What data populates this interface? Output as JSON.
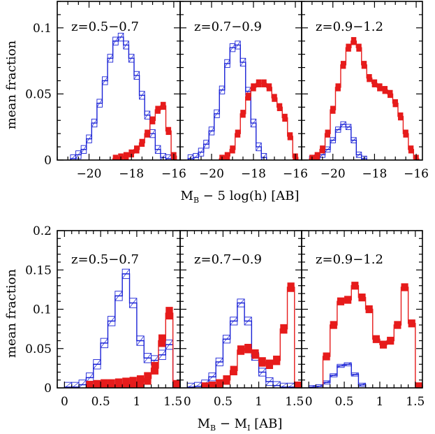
{
  "colors": {
    "blue": "#1a22d6",
    "red": "#e61b1b",
    "axis": "#000000"
  },
  "chart_data": [
    {
      "type": "histogram",
      "row": "top",
      "ylabel": "mean fraction",
      "xlabel_main": "M",
      "xlabel_sub": "B",
      "xlabel_rest": " − 5 log(h) [AB]",
      "xlim": [
        -21.5,
        -15.7
      ],
      "ylim": [
        0,
        0.12
      ],
      "yticks": [
        0,
        0.05,
        0.1
      ],
      "ytick_labels": [
        "0",
        "0.05",
        "0.1"
      ],
      "xticks": [
        -20,
        -18,
        -16
      ],
      "xtick_labels": [
        "−20",
        "−18",
        "−16"
      ],
      "bin_width": 0.25,
      "panels": [
        {
          "label": "z=0.5−0.7",
          "series": [
            {
              "name": "blue",
              "x": [
                -20.75,
                -20.5,
                -20.25,
                -20,
                -19.75,
                -19.5,
                -19.25,
                -19,
                -18.75,
                -18.5,
                -18.25,
                -18,
                -17.75,
                -17.5,
                -17.25,
                -17,
                -16.75,
                -16.5,
                -16.25
              ],
              "y": [
                0.001,
                0.004,
                0.008,
                0.016,
                0.028,
                0.043,
                0.06,
                0.077,
                0.09,
                0.093,
                0.087,
                0.077,
                0.064,
                0.049,
                0.034,
                0.02,
                0.008,
                0.002,
                0.001
              ],
              "err": 0.003
            },
            {
              "name": "red",
              "x": [
                -18.75,
                -18.5,
                -18.25,
                -18,
                -17.75,
                -17.5,
                -17.25,
                -17,
                -16.75,
                -16.5,
                -16.25,
                -16
              ],
              "y": [
                0.001,
                0.002,
                0.003,
                0.005,
                0.008,
                0.013,
                0.02,
                0.03,
                0.038,
                0.041,
                0.022,
                0.003
              ],
              "err": 0.003
            }
          ]
        },
        {
          "label": "z=0.7−0.9",
          "series": [
            {
              "name": "blue",
              "x": [
                -21,
                -20.75,
                -20.5,
                -20.25,
                -20,
                -19.75,
                -19.5,
                -19.25,
                -19,
                -18.75,
                -18.5,
                -18.25,
                -18,
                -17.75,
                -17.5
              ],
              "y": [
                0.001,
                0.002,
                0.006,
                0.012,
                0.022,
                0.035,
                0.053,
                0.073,
                0.085,
                0.087,
                0.074,
                0.052,
                0.028,
                0.01,
                0.002
              ],
              "err": 0.003
            },
            {
              "name": "red",
              "x": [
                -19.5,
                -19.25,
                -19,
                -18.75,
                -18.5,
                -18.25,
                -18,
                -17.75,
                -17.5,
                -17.25,
                -17,
                -16.75,
                -16.5,
                -16.25,
                -16
              ],
              "y": [
                0.001,
                0.003,
                0.008,
                0.02,
                0.035,
                0.048,
                0.055,
                0.058,
                0.058,
                0.055,
                0.047,
                0.04,
                0.032,
                0.018,
                0.002
              ],
              "err": 0.003
            }
          ]
        },
        {
          "label": "z=0.9−1.2",
          "series": [
            {
              "name": "blue",
              "x": [
                -21,
                -20.75,
                -20.5,
                -20.25,
                -20,
                -19.75,
                -19.5,
                -19.25,
                -19,
                -18.75,
                -18.5
              ],
              "y": [
                0.001,
                0.002,
                0.004,
                0.008,
                0.015,
                0.023,
                0.027,
                0.025,
                0.015,
                0.004,
                0.001
              ],
              "err": 0.002
            },
            {
              "name": "red",
              "x": [
                -21,
                -20.75,
                -20.5,
                -20.25,
                -20,
                -19.75,
                -19.5,
                -19.25,
                -19,
                -18.75,
                -18.5,
                -18.25,
                -18,
                -17.75,
                -17.5,
                -17.25,
                -17,
                -16.75,
                -16.5,
                -16.25,
                -16
              ],
              "y": [
                0.001,
                0.003,
                0.008,
                0.02,
                0.038,
                0.055,
                0.072,
                0.085,
                0.09,
                0.085,
                0.072,
                0.062,
                0.058,
                0.055,
                0.053,
                0.05,
                0.043,
                0.033,
                0.02,
                0.008,
                0.001
              ],
              "err": 0.003
            }
          ]
        }
      ]
    },
    {
      "type": "histogram",
      "row": "bottom",
      "ylabel": "mean fraction",
      "xlabel_main": "M",
      "xlabel_sub": "B",
      "xlabel_rest": " − M",
      "xlabel_sub2": "I",
      "xlabel_rest2": " [AB]",
      "xlim": [
        -0.1,
        1.6
      ],
      "ylim": [
        0,
        0.2
      ],
      "yticks": [
        0,
        0.05,
        0.1,
        0.15,
        0.2
      ],
      "ytick_labels": [
        "0",
        "0.05",
        "0.1",
        "0.15",
        "0.2"
      ],
      "xticks": [
        0,
        0.5,
        1,
        1.5
      ],
      "xtick_labels": [
        "0",
        "0.5",
        "1",
        "1.5"
      ],
      "bin_width": 0.1,
      "panels": [
        {
          "label": "z=0.5−0.7",
          "series": [
            {
              "name": "blue",
              "x": [
                0.05,
                0.15,
                0.25,
                0.35,
                0.45,
                0.55,
                0.65,
                0.75,
                0.85,
                0.95,
                1.05,
                1.15,
                1.25,
                1.35,
                1.45
              ],
              "y": [
                0.001,
                0.001,
                0.004,
                0.013,
                0.03,
                0.057,
                0.085,
                0.117,
                0.145,
                0.108,
                0.06,
                0.038,
                0.035,
                0.042,
                0.055
              ],
              "err": 0.006
            },
            {
              "name": "red",
              "x": [
                0.35,
                0.45,
                0.55,
                0.65,
                0.75,
                0.85,
                0.95,
                1.05,
                1.15,
                1.25,
                1.35,
                1.45,
                1.55
              ],
              "y": [
                0.001,
                0.002,
                0.003,
                0.003,
                0.004,
                0.005,
                0.006,
                0.008,
                0.012,
                0.025,
                0.06,
                0.095,
                0.002
              ],
              "err": 0.008
            }
          ]
        },
        {
          "label": "z=0.7−0.9",
          "series": [
            {
              "name": "blue",
              "x": [
                0.05,
                0.15,
                0.25,
                0.35,
                0.45,
                0.55,
                0.65,
                0.75,
                0.85,
                0.95,
                1.05,
                1.15,
                1.25,
                1.35,
                1.45
              ],
              "y": [
                0.001,
                0.002,
                0.005,
                0.014,
                0.033,
                0.062,
                0.085,
                0.108,
                0.085,
                0.04,
                0.02,
                0.008,
                0.003,
                0.001,
                0.001
              ],
              "err": 0.005
            },
            {
              "name": "red",
              "x": [
                0.25,
                0.35,
                0.45,
                0.55,
                0.65,
                0.75,
                0.85,
                0.95,
                1.05,
                1.15,
                1.25,
                1.35,
                1.45,
                1.55
              ],
              "y": [
                0.001,
                0.002,
                0.005,
                0.01,
                0.022,
                0.048,
                0.05,
                0.043,
                0.033,
                0.03,
                0.035,
                0.075,
                0.128,
                0.002
              ],
              "err": 0.006
            }
          ]
        },
        {
          "label": "z=0.9−1.2",
          "series": [
            {
              "name": "blue",
              "x": [
                0.05,
                0.15,
                0.25,
                0.35,
                0.45,
                0.55,
                0.65,
                0.75
              ],
              "y": [
                0.001,
                0.002,
                0.007,
                0.016,
                0.028,
                0.03,
                0.017,
                0.004
              ],
              "err": 0.002
            },
            {
              "name": "red",
              "x": [
                0.25,
                0.35,
                0.45,
                0.55,
                0.65,
                0.75,
                0.85,
                0.95,
                1.05,
                1.15,
                1.25,
                1.35,
                1.45,
                1.55
              ],
              "y": [
                0.04,
                0.08,
                0.11,
                0.112,
                0.13,
                0.115,
                0.1,
                0.062,
                0.055,
                0.06,
                0.08,
                0.128,
                0.082,
                0.002
              ],
              "err": 0.005
            }
          ]
        }
      ]
    }
  ]
}
